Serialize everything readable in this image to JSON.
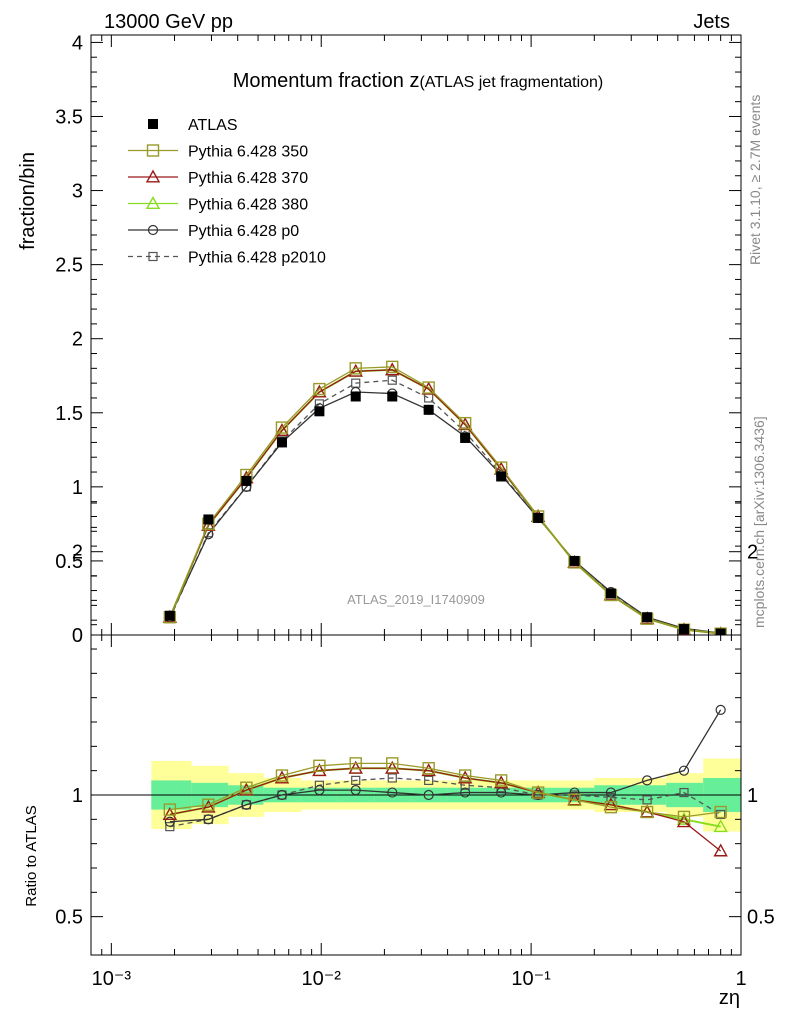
{
  "header": {
    "left": "13000 GeV pp",
    "right": "Jets"
  },
  "side": {
    "rivet": "Rivet 3.1.10, ≥ 2.7M events",
    "mcplots": "mcplots.cern.ch [arXiv:1306.3436]"
  },
  "watermark": "ATLAS_2019_I1740909",
  "chart_data": [
    {
      "type": "line",
      "title": "Momentum fraction z",
      "subtitle": "(ATLAS jet fragmentation)",
      "xlabel": "zη",
      "ylabel": "fraction/bin",
      "xscale": "log",
      "xlim": [
        0.0008,
        1.0
      ],
      "ylim": [
        0,
        4.05
      ],
      "x_ticks": [
        "10⁻³",
        "10⁻²",
        "10⁻¹",
        "1"
      ],
      "y_ticks": [
        "0",
        "0.5",
        "1",
        "1.5",
        "2",
        "2.5",
        "3",
        "3.5",
        "4"
      ],
      "legend_position": "top-left",
      "x": [
        0.0019,
        0.0029,
        0.0044,
        0.0065,
        0.0098,
        0.0146,
        0.0218,
        0.0325,
        0.0485,
        0.072,
        0.108,
        0.161,
        0.24,
        0.357,
        0.535,
        0.8
      ],
      "series": [
        {
          "name": "ATLAS",
          "style": "data",
          "color": "#000000",
          "marker": "filled-square",
          "values": [
            0.13,
            0.78,
            1.04,
            1.3,
            1.51,
            1.61,
            1.61,
            1.52,
            1.33,
            1.07,
            0.79,
            0.5,
            0.28,
            0.12,
            0.04,
            0.01
          ]
        },
        {
          "name": "Pythia 6.428 350",
          "color": "#9a9a2a",
          "marker": "open-square",
          "line": "solid",
          "values": [
            0.12,
            0.75,
            1.08,
            1.4,
            1.66,
            1.8,
            1.81,
            1.67,
            1.43,
            1.13,
            0.8,
            0.49,
            0.27,
            0.11,
            0.036,
            0.009
          ]
        },
        {
          "name": "Pythia 6.428 370",
          "color": "#9a1a1a",
          "marker": "open-triangle",
          "line": "solid",
          "values": [
            0.12,
            0.74,
            1.06,
            1.38,
            1.64,
            1.78,
            1.79,
            1.66,
            1.42,
            1.12,
            0.8,
            0.49,
            0.27,
            0.11,
            0.036,
            0.008
          ]
        },
        {
          "name": "Pythia 6.428 380",
          "color": "#88dd22",
          "marker": "open-triangle",
          "line": "solid",
          "values": [
            0.12,
            0.74,
            1.06,
            1.38,
            1.64,
            1.78,
            1.79,
            1.66,
            1.42,
            1.12,
            0.8,
            0.49,
            0.27,
            0.11,
            0.036,
            0.009
          ]
        },
        {
          "name": "Pythia 6.428 p0",
          "color": "#333333",
          "marker": "open-circle",
          "line": "solid",
          "values": [
            0.12,
            0.68,
            1.0,
            1.3,
            1.53,
            1.64,
            1.63,
            1.52,
            1.34,
            1.08,
            0.79,
            0.5,
            0.29,
            0.12,
            0.045,
            0.013
          ]
        },
        {
          "name": "Pythia 6.428 p2010",
          "color": "#555555",
          "marker": "open-square-small",
          "line": "dashed",
          "values": [
            0.11,
            0.69,
            1.0,
            1.31,
            1.56,
            1.7,
            1.72,
            1.6,
            1.37,
            1.09,
            0.79,
            0.5,
            0.28,
            0.12,
            0.04,
            0.009
          ]
        }
      ]
    },
    {
      "type": "line",
      "title": "",
      "xlabel": "zη",
      "ylabel": "Ratio to ATLAS",
      "xscale": "log",
      "xlim": [
        0.0008,
        1.0
      ],
      "ylim": [
        0.35,
        2.3
      ],
      "y_ticks": [
        "0.5",
        "1",
        "2"
      ],
      "x": [
        0.0019,
        0.0029,
        0.0044,
        0.0065,
        0.0098,
        0.0146,
        0.0218,
        0.0325,
        0.0485,
        0.072,
        0.108,
        0.161,
        0.24,
        0.357,
        0.535,
        0.8
      ],
      "bands": {
        "edges": [
          0.00155,
          0.0024,
          0.0036,
          0.0053,
          0.008,
          0.012,
          0.018,
          0.027,
          0.04,
          0.06,
          0.09,
          0.13,
          0.2,
          0.3,
          0.44,
          0.66,
          1.0
        ],
        "outer": [
          0.14,
          0.12,
          0.09,
          0.07,
          0.06,
          0.06,
          0.06,
          0.06,
          0.06,
          0.06,
          0.06,
          0.06,
          0.07,
          0.07,
          0.09,
          0.15
        ],
        "inner": [
          0.06,
          0.05,
          0.04,
          0.03,
          0.03,
          0.03,
          0.03,
          0.03,
          0.03,
          0.03,
          0.03,
          0.03,
          0.04,
          0.04,
          0.05,
          0.07
        ],
        "outer_color": "#ffff99",
        "inner_color": "#66ee99"
      },
      "series": [
        {
          "name": "Pythia 6.428 350",
          "color": "#9a9a2a",
          "marker": "open-square",
          "line": "solid",
          "values": [
            0.94,
            0.96,
            1.03,
            1.08,
            1.12,
            1.13,
            1.13,
            1.11,
            1.08,
            1.06,
            1.01,
            0.98,
            0.95,
            0.93,
            0.91,
            0.93
          ]
        },
        {
          "name": "Pythia 6.428 370",
          "color": "#9a1a1a",
          "marker": "open-triangle",
          "line": "solid",
          "values": [
            0.92,
            0.95,
            1.02,
            1.07,
            1.1,
            1.11,
            1.11,
            1.1,
            1.07,
            1.05,
            1.01,
            0.98,
            0.96,
            0.93,
            0.89,
            0.77
          ]
        },
        {
          "name": "Pythia 6.428 380",
          "color": "#88dd22",
          "marker": "open-triangle",
          "line": "solid",
          "values": [
            0.92,
            0.95,
            1.02,
            1.07,
            1.1,
            1.11,
            1.11,
            1.1,
            1.07,
            1.05,
            1.01,
            0.98,
            0.96,
            0.93,
            0.9,
            0.87
          ]
        },
        {
          "name": "Pythia 6.428 p0",
          "color": "#333333",
          "marker": "open-circle",
          "line": "solid",
          "values": [
            0.89,
            0.9,
            0.96,
            1.0,
            1.02,
            1.02,
            1.01,
            1.0,
            1.01,
            1.01,
            1.0,
            1.01,
            1.01,
            1.06,
            1.1,
            1.35
          ]
        },
        {
          "name": "Pythia 6.428 p2010",
          "color": "#555555",
          "marker": "open-square-small",
          "line": "dashed",
          "values": [
            0.87,
            0.9,
            0.96,
            1.0,
            1.04,
            1.06,
            1.07,
            1.06,
            1.04,
            1.03,
            1.0,
            1.0,
            0.99,
            0.98,
            1.01,
            0.92
          ]
        }
      ]
    }
  ]
}
